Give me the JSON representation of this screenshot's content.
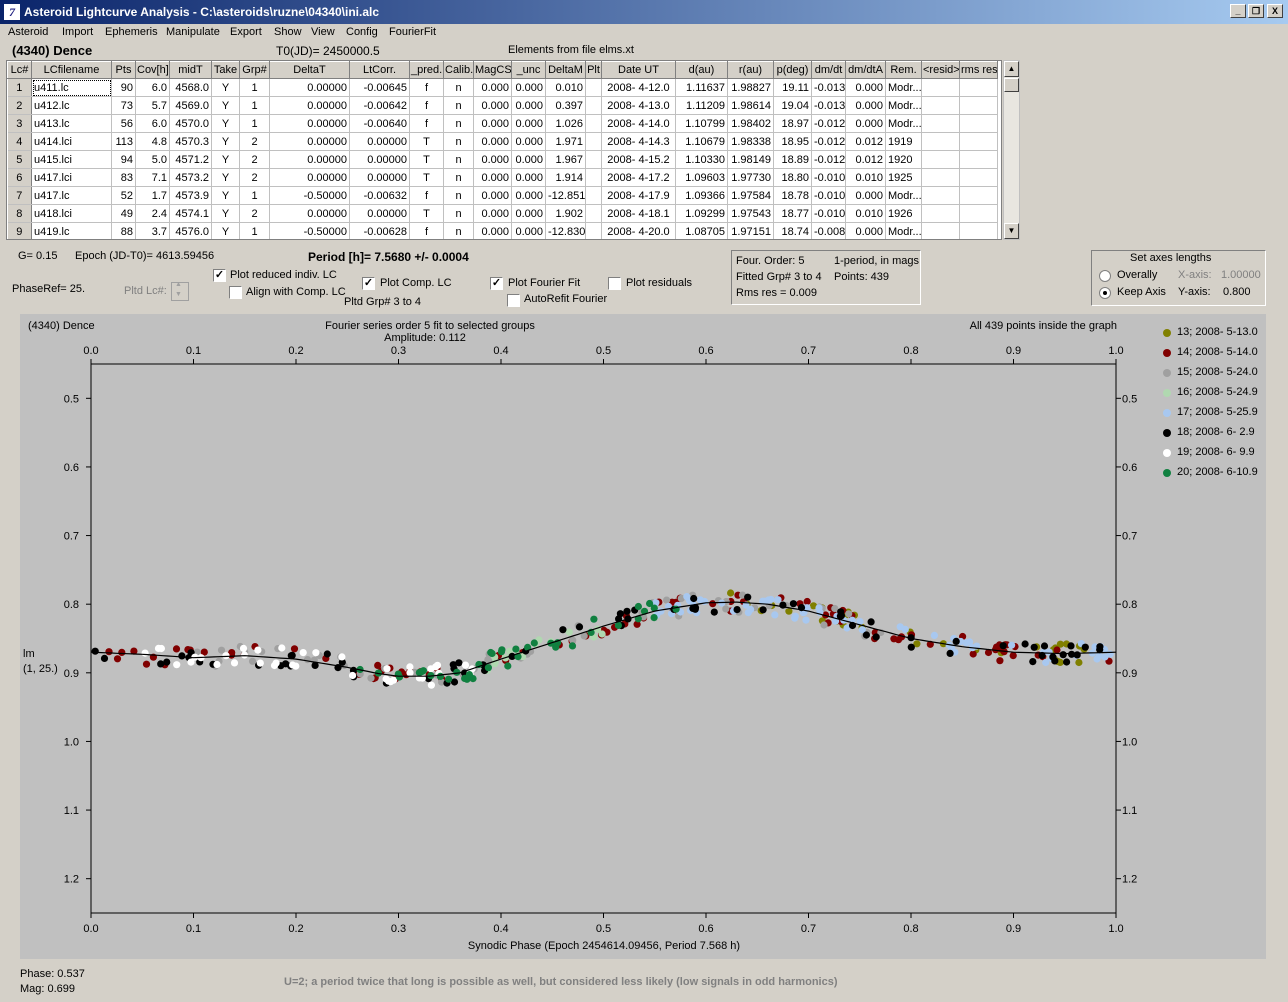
{
  "window": {
    "title": "Asteroid Lightcurve Analysis - C:\\asteroids\\ruzne\\04340\\ini.alc",
    "app_icon": "7",
    "minimize": "_",
    "restore": "❐",
    "close": "X"
  },
  "menu": [
    "Asteroid",
    "Import",
    "Ephemeris",
    "Manipulate",
    "Export",
    "Show",
    "View",
    "Config",
    "FourierFit"
  ],
  "header": {
    "object": "(4340) Dence",
    "t0": "T0(JD)= 2450000.5",
    "elements": "Elements from file elms.xt"
  },
  "table": {
    "columns": [
      "Lc#",
      "LCfilename",
      "Pts",
      "Cov[h]",
      "midT",
      "Take",
      "Grp#",
      "DeltaT",
      "LtCorr.",
      "_pred.",
      "Calib.",
      "MagCS",
      "_unc",
      "DeltaM",
      "Plt",
      "Date UT",
      "d(au)",
      "r(au)",
      "p(deg)",
      "dm/dt",
      "dm/dtA",
      "Rem.",
      "<resid>",
      "rms res"
    ],
    "rows": [
      [
        "1",
        "u411.lc",
        "90",
        "6.0",
        "4568.0",
        "Y",
        "1",
        "0.00000",
        "-0.00645",
        "f",
        "n",
        "0.000",
        "0.000",
        "0.010",
        "",
        "2008- 4-12.0",
        "1.11637",
        "1.98827",
        "19.11",
        "-0.013",
        "0.000",
        "Modr...",
        "",
        ""
      ],
      [
        "2",
        "u412.lc",
        "73",
        "5.7",
        "4569.0",
        "Y",
        "1",
        "0.00000",
        "-0.00642",
        "f",
        "n",
        "0.000",
        "0.000",
        "0.397",
        "",
        "2008- 4-13.0",
        "1.11209",
        "1.98614",
        "19.04",
        "-0.013",
        "0.000",
        "Modr...",
        "",
        ""
      ],
      [
        "3",
        "u413.lc",
        "56",
        "6.0",
        "4570.0",
        "Y",
        "1",
        "0.00000",
        "-0.00640",
        "f",
        "n",
        "0.000",
        "0.000",
        "1.026",
        "",
        "2008- 4-14.0",
        "1.10799",
        "1.98402",
        "18.97",
        "-0.012",
        "0.000",
        "Modr...",
        "",
        ""
      ],
      [
        "4",
        "u414.lci",
        "113",
        "4.8",
        "4570.3",
        "Y",
        "2",
        "0.00000",
        "0.00000",
        "T",
        "n",
        "0.000",
        "0.000",
        "1.971",
        "",
        "2008- 4-14.3",
        "1.10679",
        "1.98338",
        "18.95",
        "-0.012",
        "0.012",
        "1919",
        "",
        ""
      ],
      [
        "5",
        "u415.lci",
        "94",
        "5.0",
        "4571.2",
        "Y",
        "2",
        "0.00000",
        "0.00000",
        "T",
        "n",
        "0.000",
        "0.000",
        "1.967",
        "",
        "2008- 4-15.2",
        "1.10330",
        "1.98149",
        "18.89",
        "-0.012",
        "0.012",
        "1920",
        "",
        ""
      ],
      [
        "6",
        "u417.lci",
        "83",
        "7.1",
        "4573.2",
        "Y",
        "2",
        "0.00000",
        "0.00000",
        "T",
        "n",
        "0.000",
        "0.000",
        "1.914",
        "",
        "2008- 4-17.2",
        "1.09603",
        "1.97730",
        "18.80",
        "-0.010",
        "0.010",
        "1925",
        "",
        ""
      ],
      [
        "7",
        "u417.lc",
        "52",
        "1.7",
        "4573.9",
        "Y",
        "1",
        "-0.50000",
        "-0.00632",
        "f",
        "n",
        "0.000",
        "0.000",
        "-12.851",
        "",
        "2008- 4-17.9",
        "1.09366",
        "1.97584",
        "18.78",
        "-0.010",
        "0.000",
        "Modr...",
        "",
        ""
      ],
      [
        "8",
        "u418.lci",
        "49",
        "2.4",
        "4574.1",
        "Y",
        "2",
        "0.00000",
        "0.00000",
        "T",
        "n",
        "0.000",
        "0.000",
        "1.902",
        "",
        "2008- 4-18.1",
        "1.09299",
        "1.97543",
        "18.77",
        "-0.010",
        "0.010",
        "1926",
        "",
        ""
      ],
      [
        "9",
        "u419.lc",
        "88",
        "3.7",
        "4576.0",
        "Y",
        "1",
        "-0.50000",
        "-0.00628",
        "f",
        "n",
        "0.000",
        "0.000",
        "-12.830",
        "",
        "2008- 4-20.0",
        "1.08705",
        "1.97151",
        "18.74",
        "-0.008",
        "0.000",
        "Modr...",
        "",
        ""
      ]
    ]
  },
  "controls": {
    "g_value": "G= 0.15",
    "epoch": "Epoch (JD-T0)= 4613.59456",
    "period": "Period [h]= 7.5680 +/- 0.0004",
    "phaseref": "PhaseRef= 25.",
    "pltd_lc": "Pltd Lc#:",
    "plot_reduced": "Plot reduced indiv. LC",
    "align_comp": "Align with Comp. LC",
    "plot_comp": "Plot Comp. LC",
    "pltd_grp": "Pltd Grp#  3   to   4",
    "plot_fourier": "Plot Fourier Fit",
    "autorefit": "AutoRefit Fourier",
    "plot_residuals": "Plot residuals",
    "checks": {
      "plot_reduced": true,
      "align_comp": false,
      "plot_comp": true,
      "plot_fourier": true,
      "autorefit": false,
      "plot_residuals": false
    },
    "fourier_info": {
      "order": "Four. Order:  5",
      "fitted": "Fitted Grp# 3 to 4",
      "rms": "Rms res     = 0.009",
      "period_mode": "1-period, in mags",
      "points": "Points: 439"
    },
    "axes": {
      "title": "Set axes lengths",
      "overally": "Overally",
      "keep_axis": "Keep Axis",
      "x_label": "X-axis:",
      "x_value": "1.00000",
      "y_label": "Y-axis:",
      "y_value": "0.800",
      "selected": "keep_axis"
    }
  },
  "chart_data": {
    "type": "scatter",
    "object_label": "(4340) Dence",
    "title": "Fourier series order 5 fit to selected groups",
    "subtitle": "Amplitude: 0.112",
    "note": "All 439 points inside the graph",
    "xlabel": "Synodic Phase (Epoch 2454614.09456, Period 7.568 h)",
    "ylabel": "lm",
    "ylabel2": "(1, 25.)",
    "xlim": [
      0.0,
      1.0
    ],
    "ylim": [
      0.45,
      1.25
    ],
    "y_inverted": true,
    "x_ticks": [
      "0.0",
      "0.1",
      "0.2",
      "0.3",
      "0.4",
      "0.5",
      "0.6",
      "0.7",
      "0.8",
      "0.9",
      "1.0"
    ],
    "y_ticks": [
      "0.5",
      "0.6",
      "0.7",
      "0.8",
      "0.9",
      "1.0",
      "1.1",
      "1.2"
    ],
    "fourier_curve": {
      "x": [
        0.0,
        0.05,
        0.1,
        0.15,
        0.2,
        0.25,
        0.28,
        0.3,
        0.33,
        0.36,
        0.4,
        0.45,
        0.5,
        0.55,
        0.6,
        0.63,
        0.66,
        0.7,
        0.75,
        0.8,
        0.85,
        0.9,
        0.95,
        1.0
      ],
      "y": [
        0.87,
        0.873,
        0.878,
        0.875,
        0.88,
        0.892,
        0.901,
        0.905,
        0.905,
        0.9,
        0.88,
        0.856,
        0.832,
        0.81,
        0.798,
        0.797,
        0.8,
        0.81,
        0.83,
        0.85,
        0.862,
        0.87,
        0.872,
        0.87
      ]
    },
    "series": [
      {
        "name": "13; 2008- 5-13.0",
        "color": "#808000",
        "range": [
          0.62,
          0.97
        ]
      },
      {
        "name": "14; 2008- 5-14.0",
        "color": "#800000",
        "range": [
          0.0,
          1.0
        ]
      },
      {
        "name": "15; 2008- 5-24.0",
        "color": "#a0a0a0",
        "range": [
          0.1,
          0.8
        ]
      },
      {
        "name": "16; 2008- 5-24.9",
        "color": "#b0d8b0",
        "range": [
          0.38,
          0.5
        ]
      },
      {
        "name": "17; 2008- 5-25.9",
        "color": "#a8c8f0",
        "range": [
          0.55,
          1.0
        ]
      },
      {
        "name": "18; 2008- 6- 2.9",
        "color": "#000000",
        "range": [
          0.0,
          1.0
        ]
      },
      {
        "name": "19; 2008- 6- 9.9",
        "color": "#ffffff",
        "range": [
          0.05,
          0.4
        ]
      },
      {
        "name": "20; 2008- 6-10.9",
        "color": "#108040",
        "range": [
          0.26,
          0.58
        ]
      }
    ]
  },
  "status": {
    "phase": "Phase:  0.537",
    "mag": "Mag:    0.699",
    "message": "U=2; a period twice that long is possible as well, but considered less likely (low signals in odd harmonics)"
  }
}
